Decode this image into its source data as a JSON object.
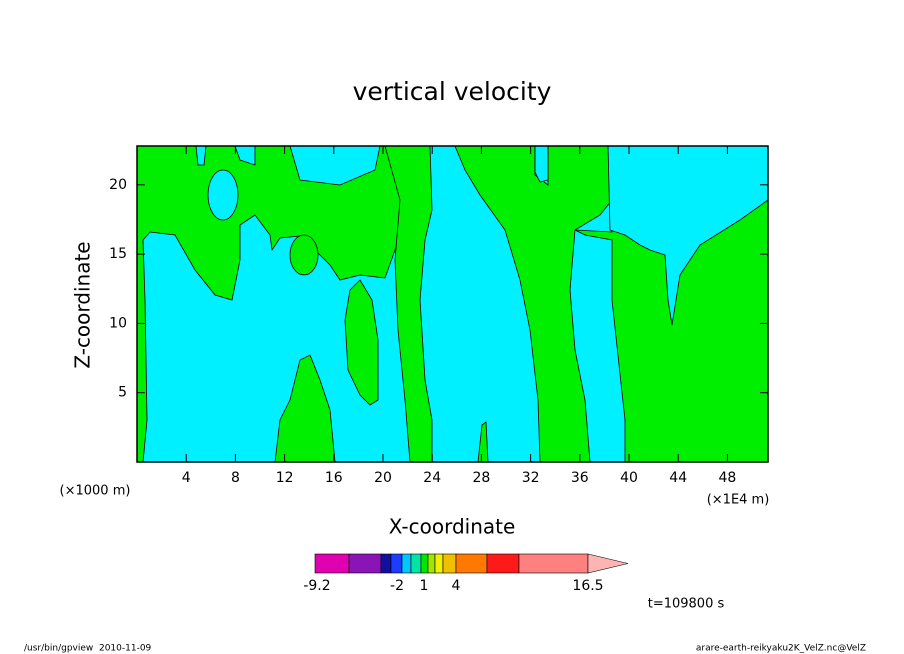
{
  "chart_data": {
    "type": "contour",
    "title": "vertical velocity",
    "x_label": "X-coordinate",
    "y_label": "Z-coordinate",
    "x_unit": "(×1E4 m)",
    "y_unit": "(×1000 m)",
    "xlim": [
      0,
      51.3
    ],
    "ylim": [
      0,
      22.8
    ],
    "xticks": [
      4,
      8,
      12,
      16,
      20,
      24,
      28,
      32,
      36,
      40,
      44,
      48
    ],
    "yticks": [
      5,
      10,
      15,
      20
    ],
    "fill_colors": {
      "low": "#00f0ff",
      "high": "#00ee00"
    },
    "colorbar": {
      "colors": [
        "#e000b0",
        "#8a14b8",
        "#1010a0",
        "#1e3cff",
        "#00c8ff",
        "#00e6a0",
        "#00e600",
        "#a0e600",
        "#f0f000",
        "#f0c000",
        "#ff7800",
        "#ff1a1a",
        "#ff8080",
        "#ffb4b4"
      ],
      "ticks": [
        -9.2,
        -2,
        1,
        4,
        16.5
      ]
    }
  },
  "time_label": "t=109800 s",
  "footer_left": "/usr/bin/gpview  2010-11-09",
  "footer_right": "arare-earth-reikyaku2K_VelZ.nc@VelZ"
}
